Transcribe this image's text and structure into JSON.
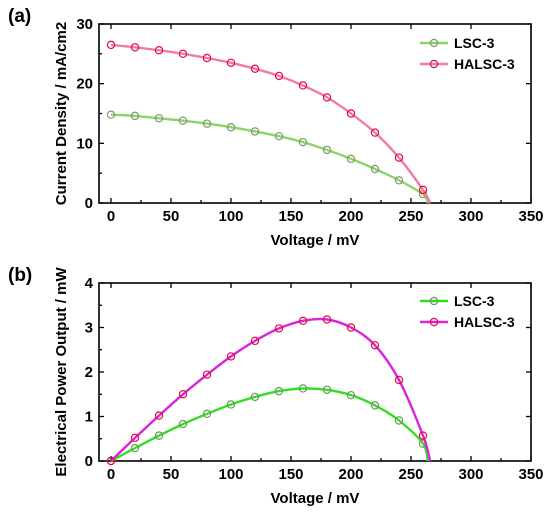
{
  "chart_data": [
    {
      "type": "line",
      "panel_label": "(a)",
      "xlabel": "Voltage / mV",
      "ylabel": "Current Density / mA/cm2",
      "xlim": [
        -10,
        350
      ],
      "ylim": [
        0,
        30
      ],
      "xticks": [
        0,
        50,
        100,
        150,
        200,
        250,
        300,
        350
      ],
      "yticks": [
        0,
        10,
        20,
        30
      ],
      "legend": "top-right",
      "series": [
        {
          "name": "LSC-3",
          "color": "#8dd36a",
          "marker_color": "#7a9a6a",
          "x": [
            0,
            20,
            40,
            60,
            80,
            100,
            120,
            140,
            160,
            180,
            200,
            220,
            240,
            260
          ],
          "y": [
            14.8,
            14.6,
            14.2,
            13.8,
            13.3,
            12.7,
            12.0,
            11.2,
            10.2,
            8.9,
            7.4,
            5.7,
            3.8,
            1.5
          ],
          "curve_end": [
            264,
            0
          ]
        },
        {
          "name": "HALSC-3",
          "color": "#f07aa8",
          "marker_color": "#e0103a",
          "x": [
            0,
            20,
            40,
            60,
            80,
            100,
            120,
            140,
            160,
            180,
            200,
            220,
            240,
            260
          ],
          "y": [
            26.5,
            26.1,
            25.6,
            25.0,
            24.3,
            23.5,
            22.5,
            21.3,
            19.7,
            17.7,
            15.0,
            11.8,
            7.6,
            2.2
          ],
          "curve_end": [
            266,
            0
          ]
        }
      ]
    },
    {
      "type": "line",
      "panel_label": "(b)",
      "xlabel": "Voltage / mV",
      "ylabel": "Electrical Power Output / mW",
      "xlim": [
        -10,
        350
      ],
      "ylim": [
        0,
        4
      ],
      "xticks": [
        0,
        50,
        100,
        150,
        200,
        250,
        300,
        350
      ],
      "yticks": [
        0,
        1,
        2,
        3,
        4
      ],
      "legend": "top-right",
      "series": [
        {
          "name": "LSC-3",
          "color": "#33dd22",
          "marker_color": "#6a9a5a",
          "x": [
            0,
            20,
            40,
            60,
            80,
            100,
            120,
            140,
            160,
            180,
            200,
            220,
            240,
            260
          ],
          "y": [
            0.0,
            0.29,
            0.57,
            0.83,
            1.06,
            1.27,
            1.44,
            1.57,
            1.63,
            1.6,
            1.48,
            1.25,
            0.91,
            0.39
          ],
          "curve_end": [
            264,
            0
          ]
        },
        {
          "name": "HALSC-3",
          "color": "#dd22dd",
          "marker_color": "#e0103a",
          "x": [
            0,
            20,
            40,
            60,
            80,
            100,
            120,
            140,
            160,
            180,
            200,
            220,
            240,
            260
          ],
          "y": [
            0.0,
            0.52,
            1.02,
            1.5,
            1.94,
            2.35,
            2.7,
            2.98,
            3.15,
            3.18,
            3.0,
            2.6,
            1.82,
            0.57
          ],
          "curve_end": [
            266,
            0
          ]
        }
      ]
    }
  ]
}
